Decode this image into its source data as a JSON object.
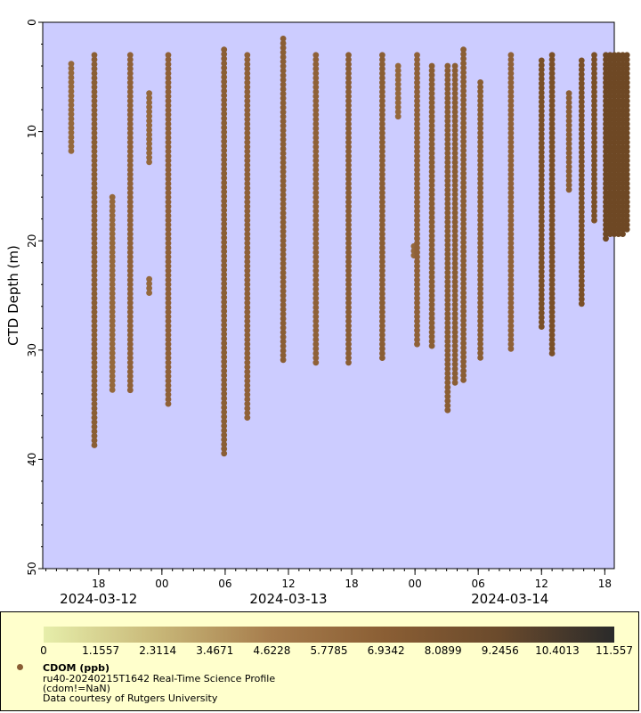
{
  "chart_data": {
    "type": "scatter",
    "ylabel": "CTD Depth (m)",
    "y_axis_inverted": true,
    "ylim": [
      0,
      50
    ],
    "yticks": [
      0,
      10,
      20,
      30,
      40,
      50
    ],
    "x_unit": "hours since 2024-03-11 00:00",
    "xlim": [
      12.7,
      66.9
    ],
    "xticks": [
      {
        "value": 18,
        "label": "18"
      },
      {
        "value": 24,
        "label": "00"
      },
      {
        "value": 30,
        "label": "06"
      },
      {
        "value": 36,
        "label": "12"
      },
      {
        "value": 42,
        "label": "18"
      },
      {
        "value": 48,
        "label": "00"
      },
      {
        "value": 54,
        "label": "06"
      },
      {
        "value": 60,
        "label": "12"
      },
      {
        "value": 66,
        "label": "18"
      }
    ],
    "date_labels": [
      {
        "value": 18,
        "label": "2024-03-12"
      },
      {
        "value": 36,
        "label": "2024-03-13"
      },
      {
        "value": 57,
        "label": "2024-03-14"
      }
    ],
    "profiles": [
      {
        "time": 15.4,
        "top": 3.8,
        "bottom": 12.0,
        "color": "#94683c"
      },
      {
        "time": 17.6,
        "top": 3.0,
        "bottom": 39.0,
        "color": "#8a5e34"
      },
      {
        "time": 19.3,
        "top": 16.0,
        "bottom": 34.0,
        "color": "#94683c"
      },
      {
        "time": 21.0,
        "top": 3.0,
        "bottom": 34.0,
        "color": "#8f6138"
      },
      {
        "time": 22.8,
        "top": 6.5,
        "bottom": 13.0,
        "color": "#94683c"
      },
      {
        "time": 22.8,
        "top": 23.5,
        "bottom": 25.0,
        "color": "#94683c"
      },
      {
        "time": 24.6,
        "top": 3.0,
        "bottom": 35.0,
        "color": "#8f6138"
      },
      {
        "time": 29.9,
        "top": 2.5,
        "bottom": 39.8,
        "color": "#8a5e34"
      },
      {
        "time": 32.1,
        "top": 3.0,
        "bottom": 36.5,
        "color": "#8f6138"
      },
      {
        "time": 35.5,
        "top": 1.5,
        "bottom": 31.0,
        "color": "#8a5e34"
      },
      {
        "time": 38.6,
        "top": 3.0,
        "bottom": 31.5,
        "color": "#8f6138"
      },
      {
        "time": 41.7,
        "top": 3.0,
        "bottom": 31.5,
        "color": "#8a5e34"
      },
      {
        "time": 44.9,
        "top": 3.0,
        "bottom": 31.0,
        "color": "#8a5e34"
      },
      {
        "time": 46.4,
        "top": 4.0,
        "bottom": 9.0,
        "color": "#94683c"
      },
      {
        "time": 47.9,
        "top": 20.5,
        "bottom": 21.5,
        "color": "#94683c"
      },
      {
        "time": 48.2,
        "top": 3.0,
        "bottom": 29.5,
        "color": "#8f6138"
      },
      {
        "time": 49.6,
        "top": 4.0,
        "bottom": 30.0,
        "color": "#8a5e34"
      },
      {
        "time": 51.1,
        "top": 4.0,
        "bottom": 35.5,
        "color": "#8a5e34"
      },
      {
        "time": 51.8,
        "top": 4.0,
        "bottom": 33.0,
        "color": "#8a5e34"
      },
      {
        "time": 52.6,
        "top": 2.5,
        "bottom": 33.0,
        "color": "#8a5e34"
      },
      {
        "time": 54.2,
        "top": 5.5,
        "bottom": 31.0,
        "color": "#8a5e34"
      },
      {
        "time": 57.1,
        "top": 3.0,
        "bottom": 30.0,
        "color": "#8f6138"
      },
      {
        "time": 60.0,
        "top": 3.5,
        "bottom": 28.0,
        "color": "#7a5028"
      },
      {
        "time": 61.0,
        "top": 3.0,
        "bottom": 30.5,
        "color": "#7a5028"
      },
      {
        "time": 62.6,
        "top": 6.5,
        "bottom": 15.5,
        "color": "#8a5e34"
      },
      {
        "time": 63.8,
        "top": 3.5,
        "bottom": 26.0,
        "color": "#7a5028"
      },
      {
        "time": 65.0,
        "top": 3.0,
        "bottom": 18.5,
        "color": "#7a5028"
      },
      {
        "time": 66.1,
        "top": 3.0,
        "bottom": 20.0,
        "color": "#6e4824"
      },
      {
        "time": 66.5,
        "top": 3.0,
        "bottom": 19.5,
        "color": "#6e4824"
      },
      {
        "time": 66.9,
        "top": 3.0,
        "bottom": 19.5,
        "color": "#6e4824"
      },
      {
        "time": 67.3,
        "top": 3.0,
        "bottom": 19.5,
        "color": "#6e4824"
      },
      {
        "time": 67.7,
        "top": 3.0,
        "bottom": 19.5,
        "color": "#6e4824"
      },
      {
        "time": 68.1,
        "top": 3.0,
        "bottom": 19.0,
        "color": "#6e4824"
      }
    ],
    "colorbar": {
      "min": 0,
      "max": 11.557,
      "ticks": [
        "0",
        "1.1557",
        "2.3114",
        "3.4671",
        "4.6228",
        "5.7785",
        "6.9342",
        "8.0899",
        "9.2456",
        "10.4013",
        "11.557"
      ],
      "stops": [
        "#e6eeaa",
        "#c8b778",
        "#a67c4c",
        "#8a5e34",
        "#6a4a2c",
        "#2a2a2a"
      ]
    },
    "legend": {
      "series_name": "CDOM (ppb)",
      "line1": "ru40-20240215T1642 Real-Time Science Profile",
      "line2": "(cdom!=NaN)",
      "line3": "Data courtesy of Rutgers University"
    }
  }
}
